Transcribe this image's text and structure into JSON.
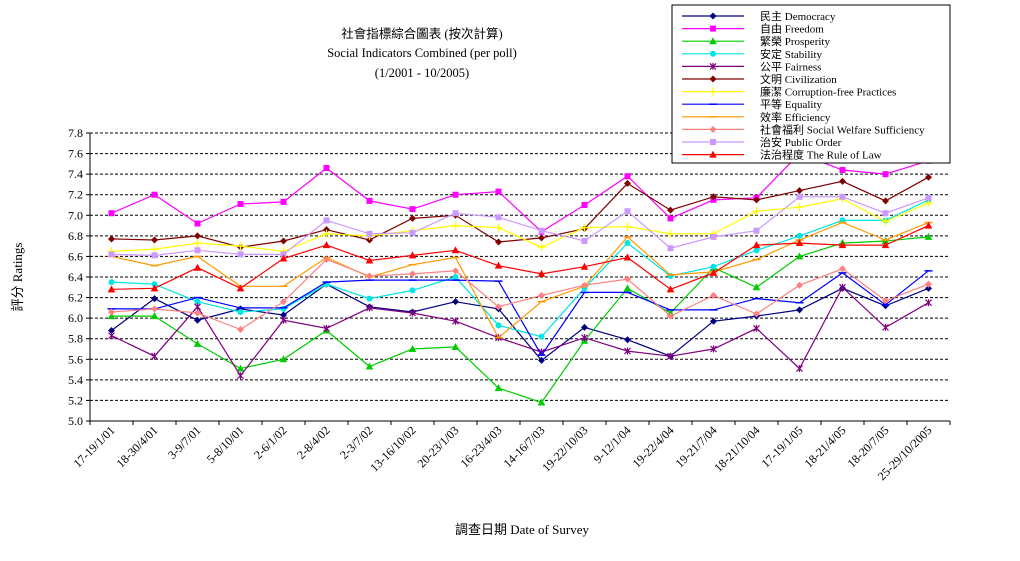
{
  "chart_data": {
    "type": "line",
    "title_lines": [
      "社會指標綜合圖表 (按次計算)",
      "Social Indicators Combined (per poll)",
      "(1/2001 - 10/2005)"
    ],
    "xlabel": "調查日期 Date of Survey",
    "ylabel": "評分 Ratings",
    "ylim": [
      5.0,
      7.8
    ],
    "yticks": [
      "5.0",
      "5.2",
      "5.4",
      "5.6",
      "5.8",
      "6.0",
      "6.2",
      "6.4",
      "6.6",
      "6.8",
      "7.0",
      "7.2",
      "7.4",
      "7.6",
      "7.8"
    ],
    "grid": "horizontal dashed",
    "legend_position": "top-right",
    "x_tick_labels": [
      "17-19/1/01",
      "18-30/4/01",
      "3-9/7/01",
      "5-8/10/01",
      "2-6/1/02",
      "2-8/4/02",
      "2-3/7/02",
      "13-16/10/02",
      "20-23/1/03",
      "16-23/4/03",
      "14-16/7/03",
      "19-22/10/03",
      "9-12/1/04",
      "19-22/4/04",
      "19-21/7/04",
      "18-21/10/04",
      "17-19/1/05",
      "18-21/4/05",
      "18-20/7/05",
      "25-29/10/2005"
    ],
    "series": [
      {
        "name": "民主 Democracy",
        "color": "#000080",
        "marker": "diamond",
        "values": [
          5.88,
          6.19,
          5.98,
          6.09,
          6.03,
          6.33,
          6.11,
          6.06,
          6.16,
          6.09,
          5.59,
          5.91,
          5.79,
          5.63,
          5.97,
          6.02,
          6.08,
          6.29,
          6.12,
          6.29
        ]
      },
      {
        "name": "自由 Freedom",
        "color": "#ff00ff",
        "marker": "square",
        "values": [
          7.02,
          7.2,
          6.92,
          7.11,
          7.13,
          7.46,
          7.14,
          7.06,
          7.2,
          7.23,
          6.84,
          7.1,
          7.38,
          6.97,
          7.15,
          7.17,
          7.6,
          7.44,
          7.4,
          7.53
        ]
      },
      {
        "name": "繁榮 Prosperity",
        "color": "#00cc00",
        "marker": "triangle",
        "values": [
          6.02,
          6.02,
          5.75,
          5.51,
          5.6,
          5.88,
          5.53,
          5.7,
          5.72,
          5.32,
          5.18,
          5.78,
          6.29,
          6.05,
          6.49,
          6.3,
          6.6,
          6.73,
          6.75,
          6.79
        ]
      },
      {
        "name": "安定 Stability",
        "color": "#00e5e5",
        "marker": "circle",
        "values": [
          6.35,
          6.33,
          6.16,
          6.06,
          6.09,
          6.33,
          6.19,
          6.27,
          6.4,
          5.93,
          5.82,
          6.29,
          6.73,
          6.41,
          6.5,
          6.66,
          6.8,
          6.95,
          6.95,
          7.15
        ]
      },
      {
        "name": "公平 Fairness",
        "color": "#800080",
        "marker": "star",
        "values": [
          5.83,
          5.63,
          6.11,
          5.44,
          5.98,
          5.9,
          6.1,
          6.05,
          5.97,
          5.81,
          5.67,
          5.81,
          5.68,
          5.63,
          5.7,
          5.9,
          5.51,
          6.3,
          5.91,
          6.15
        ]
      },
      {
        "name": "文明 Civilization",
        "color": "#800000",
        "marker": "diamond",
        "values": [
          6.77,
          6.76,
          6.8,
          6.69,
          6.75,
          6.86,
          6.76,
          6.97,
          7.0,
          6.74,
          6.78,
          6.87,
          7.31,
          7.05,
          7.18,
          7.15,
          7.24,
          7.33,
          7.14,
          7.37
        ]
      },
      {
        "name": "廉潔 Corruption-free Practices",
        "color": "#ffff00",
        "marker": "plus",
        "values": [
          6.65,
          6.67,
          6.73,
          6.7,
          6.65,
          6.82,
          6.8,
          6.85,
          6.9,
          6.88,
          6.69,
          6.88,
          6.89,
          6.82,
          6.82,
          7.04,
          7.08,
          7.16,
          6.94,
          7.12
        ]
      },
      {
        "name": "平等 Equality",
        "color": "#0000ff",
        "marker": "dash",
        "values": [
          6.09,
          6.09,
          6.2,
          6.1,
          6.1,
          6.35,
          6.37,
          6.37,
          6.37,
          6.36,
          5.64,
          6.25,
          6.25,
          6.08,
          6.08,
          6.19,
          6.15,
          6.44,
          6.13,
          6.46
        ]
      },
      {
        "name": "效率 Efficiency",
        "color": "#ff9900",
        "marker": "dash",
        "values": [
          6.6,
          6.51,
          6.6,
          6.31,
          6.31,
          6.59,
          6.4,
          6.52,
          6.59,
          5.81,
          6.16,
          6.31,
          6.79,
          6.42,
          6.45,
          6.57,
          6.76,
          6.93,
          6.76,
          6.93
        ]
      },
      {
        "name": "社會福利 Social Welfare Sufficiency",
        "color": "#ff8080",
        "marker": "diamond",
        "values": [
          6.06,
          6.09,
          6.05,
          5.89,
          6.16,
          6.57,
          6.41,
          6.43,
          6.46,
          6.11,
          6.22,
          6.32,
          6.38,
          6.02,
          6.22,
          6.04,
          6.32,
          6.48,
          6.17,
          6.33
        ]
      },
      {
        "name": "治安 Public Order",
        "color": "#cc99ff",
        "marker": "square",
        "values": [
          6.62,
          6.61,
          6.66,
          6.62,
          6.62,
          6.95,
          6.82,
          6.83,
          7.02,
          6.98,
          6.85,
          6.75,
          7.04,
          6.68,
          6.79,
          6.85,
          7.18,
          7.18,
          7.02,
          7.17
        ]
      },
      {
        "name": "法治程度 The Rule of Law",
        "color": "#ff0000",
        "marker": "triangle",
        "values": [
          6.28,
          6.29,
          6.49,
          6.29,
          6.58,
          6.71,
          6.56,
          6.61,
          6.66,
          6.51,
          6.43,
          6.5,
          6.59,
          6.28,
          6.44,
          6.71,
          6.73,
          6.71,
          6.71,
          6.9
        ]
      }
    ]
  }
}
